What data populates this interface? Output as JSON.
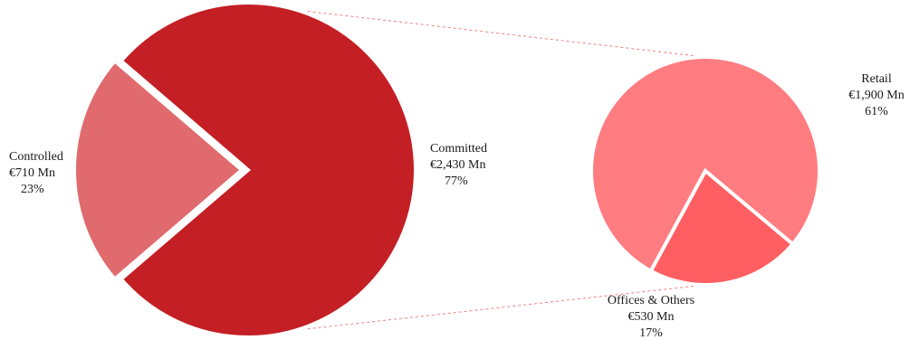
{
  "chart_data": [
    {
      "type": "pie",
      "slices": [
        {
          "label": "Committed",
          "value_text": "€2,430 Mn",
          "percent_text": "77%",
          "value": 2430,
          "percent": 77,
          "color": "#c41f25"
        },
        {
          "label": "Controlled",
          "value_text": "€710 Mn",
          "percent_text": "23%",
          "value": 710,
          "percent": 23,
          "color": "#e06a6d",
          "exploded": true
        }
      ]
    },
    {
      "type": "pie",
      "slices": [
        {
          "label": "Retail",
          "value_text": "€1,900 Mn",
          "percent_text": "61%",
          "value": 1900,
          "percent": 61,
          "color": "#ff7c80"
        },
        {
          "label": "Offices & Others",
          "value_text": "€530 Mn",
          "percent_text": "17%",
          "value": 530,
          "percent": 17,
          "color": "#ff5f62"
        }
      ]
    }
  ],
  "connector_color": "#f08080"
}
